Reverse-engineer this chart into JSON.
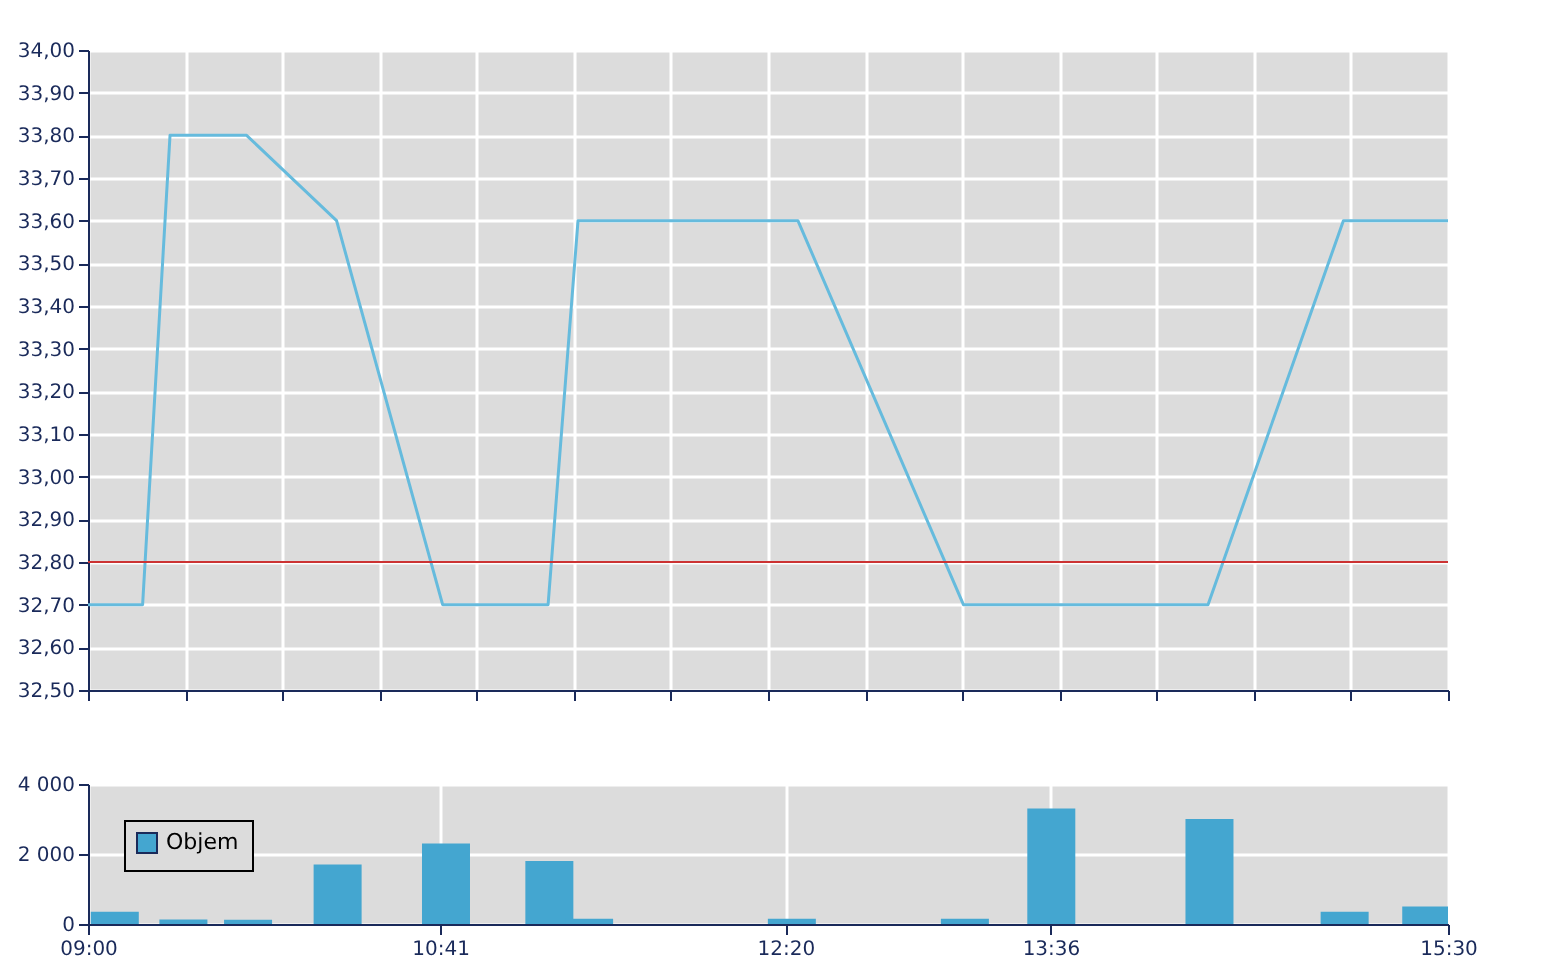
{
  "chart_data": [
    {
      "type": "line",
      "x": [
        9.0,
        9.261,
        9.392,
        9.758,
        10.188,
        10.695,
        11.199,
        11.342,
        12.393,
        13.184,
        14.353,
        15.0,
        15.5
      ],
      "series": [
        {
          "color": "#66bbdd",
          "values": [
            32.7,
            32.7,
            33.8,
            33.8,
            33.6,
            32.7,
            32.7,
            33.6,
            33.6,
            32.7,
            32.7,
            33.6,
            33.6
          ]
        }
      ],
      "xlim": [
        9.0,
        15.5
      ],
      "xticks": [
        {
          "value": 9.0,
          "label": null
        },
        {
          "value": 9.4643,
          "label": null
        },
        {
          "value": 9.9286,
          "label": null
        },
        {
          "value": 10.3929,
          "label": null
        },
        {
          "value": 10.8571,
          "label": null
        },
        {
          "value": 11.3214,
          "label": null
        },
        {
          "value": 11.7857,
          "label": null
        },
        {
          "value": 12.25,
          "label": null
        },
        {
          "value": 12.7143,
          "label": null
        },
        {
          "value": 13.178571,
          "label": null
        },
        {
          "value": 13.6429,
          "label": null
        },
        {
          "value": 14.107143,
          "label": null
        },
        {
          "value": 14.571429,
          "label": null
        },
        {
          "value": 15.035714,
          "label": null
        },
        {
          "value": 15.5,
          "label": null
        }
      ],
      "ylim": [
        32.5,
        34.0
      ],
      "yticks": [
        {
          "value": 32.5,
          "label": "32,50"
        },
        {
          "value": 32.6,
          "label": "32,60"
        },
        {
          "value": 32.7,
          "label": "32,70"
        },
        {
          "value": 32.8,
          "label": "32,80"
        },
        {
          "value": 32.9,
          "label": "32,90"
        },
        {
          "value": 33.0,
          "label": "33,00"
        },
        {
          "value": 33.1,
          "label": "33,10"
        },
        {
          "value": 33.2,
          "label": "33,20"
        },
        {
          "value": 33.3,
          "label": "33,30"
        },
        {
          "value": 33.4,
          "label": "33,40"
        },
        {
          "value": 33.5,
          "label": "33,50"
        },
        {
          "value": 33.6,
          "label": "33,60"
        },
        {
          "value": 33.7,
          "label": "33,70"
        },
        {
          "value": 33.8,
          "label": "33,80"
        },
        {
          "value": 33.9,
          "label": "33,90"
        },
        {
          "value": 34.0,
          "label": "34,00"
        }
      ],
      "ref_lines": [
        {
          "axis": "y",
          "value": 32.8,
          "color": "#cc3333"
        }
      ],
      "tick_labels": "y",
      "grid": true,
      "legend": false
    },
    {
      "type": "bar",
      "x": [
        9.128,
        9.456,
        9.765,
        10.193,
        10.711,
        11.205,
        11.395,
        12.364,
        13.191,
        13.604,
        14.36,
        15.006,
        15.396
      ],
      "series": [
        {
          "name": "Objem",
          "color": "#44a6d0",
          "values": [
            350,
            130,
            120,
            1700,
            2300,
            1800,
            150,
            150,
            150,
            3300,
            3000,
            350,
            500
          ]
        }
      ],
      "xlim": [
        9.0,
        15.5
      ],
      "xticks": [
        {
          "value": 9.0,
          "label": "09:00"
        },
        {
          "value": 10.683,
          "label": "10:41"
        },
        {
          "value": 12.333,
          "label": "12:20"
        },
        {
          "value": 13.6,
          "label": "13:36"
        },
        {
          "value": 15.5,
          "label": "15:30"
        }
      ],
      "ylim": [
        0,
        4000
      ],
      "yticks": [
        0,
        {
          "value": 2000,
          "label": "2 000"
        },
        {
          "value": 4000,
          "label": "4 000"
        }
      ],
      "grid": true,
      "legend": "top left"
    }
  ]
}
